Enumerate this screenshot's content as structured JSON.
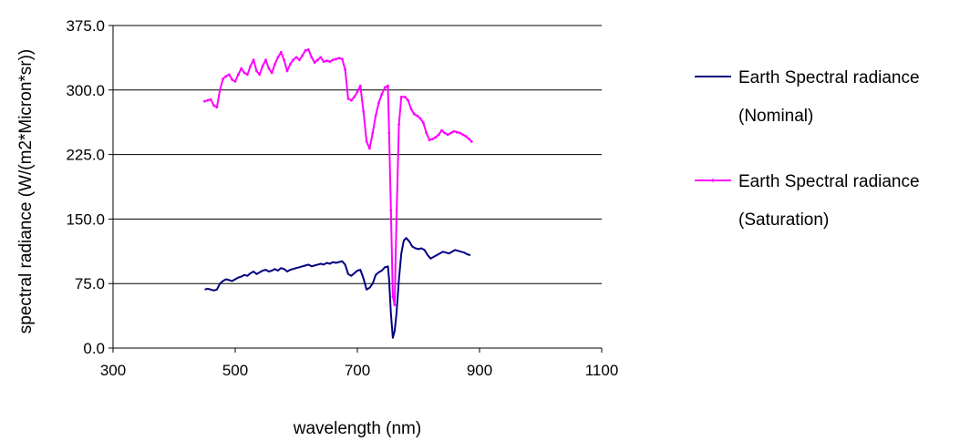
{
  "chart_data": {
    "type": "line",
    "title": "",
    "xlabel": "wavelength (nm)",
    "ylabel": "spectral radiance (W/(m2*Micron*sr))",
    "xlim": [
      300,
      1100
    ],
    "ylim": [
      0,
      375
    ],
    "x_ticks": [
      "300",
      "500",
      "700",
      "900",
      "1100"
    ],
    "y_ticks": [
      "0.0",
      "75.0",
      "150.0",
      "225.0",
      "300.0",
      "375.0"
    ],
    "grid": "horizontal",
    "legend_position": "right",
    "series": [
      {
        "name": "Earth Spectral radiance (Nominal)",
        "legend_lines": [
          "Earth Spectral radiance",
          "(Nominal)"
        ],
        "color": "#000080",
        "points": [
          [
            450,
            68
          ],
          [
            455,
            69
          ],
          [
            460,
            68
          ],
          [
            465,
            67
          ],
          [
            470,
            68
          ],
          [
            475,
            75
          ],
          [
            480,
            78
          ],
          [
            485,
            80
          ],
          [
            490,
            79
          ],
          [
            495,
            78
          ],
          [
            500,
            80
          ],
          [
            505,
            82
          ],
          [
            510,
            83
          ],
          [
            515,
            85
          ],
          [
            520,
            84
          ],
          [
            525,
            87
          ],
          [
            530,
            89
          ],
          [
            535,
            86
          ],
          [
            540,
            88
          ],
          [
            545,
            90
          ],
          [
            550,
            91
          ],
          [
            555,
            89
          ],
          [
            560,
            90
          ],
          [
            565,
            92
          ],
          [
            570,
            90
          ],
          [
            575,
            93
          ],
          [
            580,
            92
          ],
          [
            585,
            89
          ],
          [
            590,
            91
          ],
          [
            595,
            92
          ],
          [
            600,
            93
          ],
          [
            605,
            94
          ],
          [
            610,
            95
          ],
          [
            615,
            96
          ],
          [
            620,
            97
          ],
          [
            625,
            95
          ],
          [
            630,
            96
          ],
          [
            635,
            97
          ],
          [
            640,
            98
          ],
          [
            645,
            97
          ],
          [
            650,
            99
          ],
          [
            655,
            98
          ],
          [
            660,
            100
          ],
          [
            665,
            99
          ],
          [
            670,
            100
          ],
          [
            675,
            101
          ],
          [
            680,
            97
          ],
          [
            685,
            86
          ],
          [
            690,
            84
          ],
          [
            695,
            87
          ],
          [
            700,
            90
          ],
          [
            705,
            91
          ],
          [
            710,
            81
          ],
          [
            715,
            68
          ],
          [
            720,
            70
          ],
          [
            725,
            75
          ],
          [
            730,
            85
          ],
          [
            735,
            88
          ],
          [
            740,
            90
          ],
          [
            745,
            94
          ],
          [
            750,
            95
          ],
          [
            752,
            80
          ],
          [
            755,
            40
          ],
          [
            758,
            12
          ],
          [
            761,
            20
          ],
          [
            764,
            40
          ],
          [
            768,
            80
          ],
          [
            772,
            110
          ],
          [
            776,
            125
          ],
          [
            780,
            128
          ],
          [
            785,
            124
          ],
          [
            790,
            118
          ],
          [
            795,
            116
          ],
          [
            800,
            115
          ],
          [
            805,
            116
          ],
          [
            810,
            114
          ],
          [
            815,
            108
          ],
          [
            820,
            104
          ],
          [
            825,
            106
          ],
          [
            830,
            108
          ],
          [
            835,
            110
          ],
          [
            840,
            112
          ],
          [
            845,
            111
          ],
          [
            850,
            110
          ],
          [
            855,
            112
          ],
          [
            860,
            114
          ],
          [
            865,
            113
          ],
          [
            870,
            112
          ],
          [
            875,
            111
          ],
          [
            880,
            109
          ],
          [
            885,
            108
          ]
        ]
      },
      {
        "name": "Earth Spectral radiance (Saturation)",
        "legend_lines": [
          "Earth Spectral radiance",
          "(Saturation)"
        ],
        "color": "#ff00ff",
        "points": [
          [
            450,
            287
          ],
          [
            455,
            288
          ],
          [
            460,
            289
          ],
          [
            465,
            282
          ],
          [
            470,
            280
          ],
          [
            475,
            300
          ],
          [
            480,
            313
          ],
          [
            485,
            316
          ],
          [
            490,
            318
          ],
          [
            495,
            312
          ],
          [
            500,
            310
          ],
          [
            505,
            318
          ],
          [
            510,
            325
          ],
          [
            515,
            320
          ],
          [
            520,
            318
          ],
          [
            525,
            328
          ],
          [
            530,
            335
          ],
          [
            535,
            322
          ],
          [
            540,
            318
          ],
          [
            545,
            328
          ],
          [
            550,
            335
          ],
          [
            555,
            325
          ],
          [
            560,
            320
          ],
          [
            565,
            330
          ],
          [
            570,
            338
          ],
          [
            575,
            344
          ],
          [
            580,
            335
          ],
          [
            585,
            322
          ],
          [
            590,
            330
          ],
          [
            595,
            335
          ],
          [
            600,
            338
          ],
          [
            605,
            335
          ],
          [
            610,
            340
          ],
          [
            615,
            346
          ],
          [
            620,
            347
          ],
          [
            625,
            338
          ],
          [
            630,
            332
          ],
          [
            635,
            335
          ],
          [
            640,
            338
          ],
          [
            645,
            333
          ],
          [
            650,
            334
          ],
          [
            655,
            333
          ],
          [
            660,
            335
          ],
          [
            665,
            336
          ],
          [
            670,
            337
          ],
          [
            675,
            336
          ],
          [
            680,
            324
          ],
          [
            685,
            290
          ],
          [
            690,
            288
          ],
          [
            695,
            292
          ],
          [
            700,
            298
          ],
          [
            705,
            305
          ],
          [
            710,
            275
          ],
          [
            715,
            240
          ],
          [
            720,
            232
          ],
          [
            725,
            250
          ],
          [
            730,
            270
          ],
          [
            735,
            285
          ],
          [
            740,
            295
          ],
          [
            745,
            303
          ],
          [
            750,
            305
          ],
          [
            752,
            250
          ],
          [
            755,
            160
          ],
          [
            758,
            60
          ],
          [
            761,
            50
          ],
          [
            764,
            150
          ],
          [
            768,
            260
          ],
          [
            772,
            292
          ],
          [
            778,
            292
          ],
          [
            783,
            288
          ],
          [
            788,
            278
          ],
          [
            793,
            272
          ],
          [
            798,
            270
          ],
          [
            803,
            267
          ],
          [
            808,
            262
          ],
          [
            813,
            250
          ],
          [
            818,
            242
          ],
          [
            823,
            243
          ],
          [
            828,
            245
          ],
          [
            833,
            248
          ],
          [
            838,
            253
          ],
          [
            843,
            250
          ],
          [
            848,
            248
          ],
          [
            853,
            250
          ],
          [
            858,
            252
          ],
          [
            863,
            251
          ],
          [
            868,
            250
          ],
          [
            873,
            248
          ],
          [
            878,
            246
          ],
          [
            883,
            243
          ],
          [
            887,
            240
          ]
        ]
      }
    ]
  }
}
